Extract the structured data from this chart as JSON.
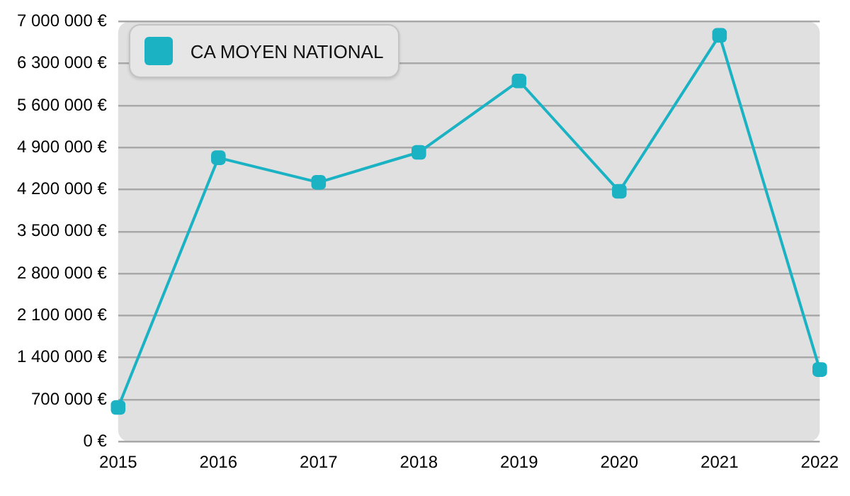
{
  "chart_data": {
    "type": "line",
    "categories": [
      "2015",
      "2016",
      "2017",
      "2018",
      "2019",
      "2020",
      "2021",
      "2022"
    ],
    "series": [
      {
        "name": "CA MOYEN NATIONAL",
        "color": "#1bb3c4",
        "values": [
          570000,
          4730000,
          4320000,
          4820000,
          6010000,
          4170000,
          6770000,
          1200000
        ]
      }
    ],
    "ylim": [
      0,
      7000000
    ],
    "yticks": [
      {
        "value": 0,
        "label": "0 €"
      },
      {
        "value": 700000,
        "label": "700 000 €"
      },
      {
        "value": 1400000,
        "label": "1 400 000 €"
      },
      {
        "value": 2100000,
        "label": "2 100 000 €"
      },
      {
        "value": 2800000,
        "label": "2 800 000 €"
      },
      {
        "value": 3500000,
        "label": "3 500 000 €"
      },
      {
        "value": 4200000,
        "label": "4 200 000 €"
      },
      {
        "value": 4900000,
        "label": "4 900 000 €"
      },
      {
        "value": 5600000,
        "label": "5 600 000 €"
      },
      {
        "value": 6300000,
        "label": "6 300 000 €"
      },
      {
        "value": 7000000,
        "label": "7 000 000 €"
      }
    ],
    "grid": "y",
    "legend": "top left",
    "marker": "square",
    "line_style": "solid"
  }
}
